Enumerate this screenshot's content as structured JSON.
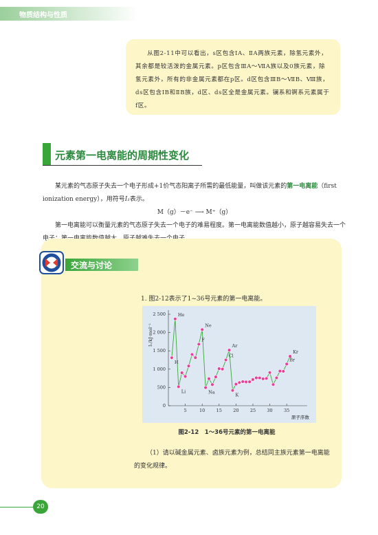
{
  "header": {
    "title": "物质结构与性质"
  },
  "note": {
    "text": "从图2-11中可以看出，s区包含ⅠA、ⅡA两族元素，除氢元素外，其余都是较活泼的金属元素。p区包含ⅢA～ⅦA族以及0族元素，除氢元素外，所有的非金属元素都在p区。d区包含ⅢB～ⅦB、Ⅷ族，ds区包含ⅠB和ⅡB族，d区、ds区全是金属元素。镧系和锕系元素属于f区。"
  },
  "section": {
    "title": "元素第一电离能的周期性变化"
  },
  "body": {
    "paragraph1": [
      "某元素的气态原子失去一个电子形成+1价气态阳离子所需的最低能量，叫做该元素的",
      "第一电离能",
      "（first ionization energy），用符号",
      "I₁",
      "表示。"
    ],
    "equation": "M（g）－e⁻ ⟶ M⁺（g）",
    "paragraph2": "第一电离能可以衡量元素的气态原子失去一个电子的难易程度。第一电离能数值越小，原子越容易失去一个电子；第一电离能数值越大，原子越难失去一个电子。"
  },
  "discussion": {
    "title": "交流与讨论",
    "question": "1. 图2-12表示了1~36号元素的第一电离能。",
    "caption": "图2-12　1～36号元素的第一电离能",
    "subquestion": "（1）请以碱金属元素、卤族元素为例，总结同主族元素第一电离能的变化规律。"
  },
  "page_number": "20",
  "chart_data": {
    "type": "line",
    "ylabel": "I₁/kJ·mol⁻¹",
    "xlabel": "原子序数",
    "x": [
      1,
      2,
      3,
      4,
      5,
      6,
      7,
      8,
      9,
      10,
      11,
      12,
      13,
      14,
      15,
      16,
      17,
      18,
      19,
      20,
      21,
      22,
      23,
      24,
      25,
      26,
      27,
      28,
      29,
      30,
      31,
      32,
      33,
      34,
      35,
      36
    ],
    "values": [
      1312,
      2372,
      520,
      900,
      801,
      1086,
      1402,
      1314,
      1681,
      2081,
      496,
      738,
      578,
      787,
      1012,
      1000,
      1251,
      1521,
      419,
      590,
      633,
      659,
      651,
      653,
      717,
      762,
      760,
      737,
      746,
      906,
      579,
      762,
      947,
      941,
      1140,
      1351
    ],
    "color": "#3aa63a",
    "marker_color": "#e8409a",
    "xlim": [
      0,
      37
    ],
    "xticks": [
      5,
      10,
      15,
      20,
      25,
      30,
      35
    ],
    "ylim": [
      0,
      2500
    ],
    "yticks": [
      0,
      500,
      {
        "value": 1000,
        "label": "1 000"
      },
      {
        "value": 1500,
        "label": "1 500"
      },
      {
        "value": 2000,
        "label": "2 000"
      },
      {
        "value": 2500,
        "label": "2 500"
      }
    ],
    "point_labels": [
      {
        "text": "H",
        "x": 1
      },
      {
        "text": "He",
        "x": 2
      },
      {
        "text": "Li",
        "x": 3
      },
      {
        "text": "F",
        "x": 9
      },
      {
        "text": "Ne",
        "x": 10
      },
      {
        "text": "Na",
        "x": 11
      },
      {
        "text": "Cl",
        "x": 17
      },
      {
        "text": "Ar",
        "x": 18
      },
      {
        "text": "K",
        "x": 19
      },
      {
        "text": "Br",
        "x": 35
      },
      {
        "text": "Kr",
        "x": 36
      }
    ]
  }
}
